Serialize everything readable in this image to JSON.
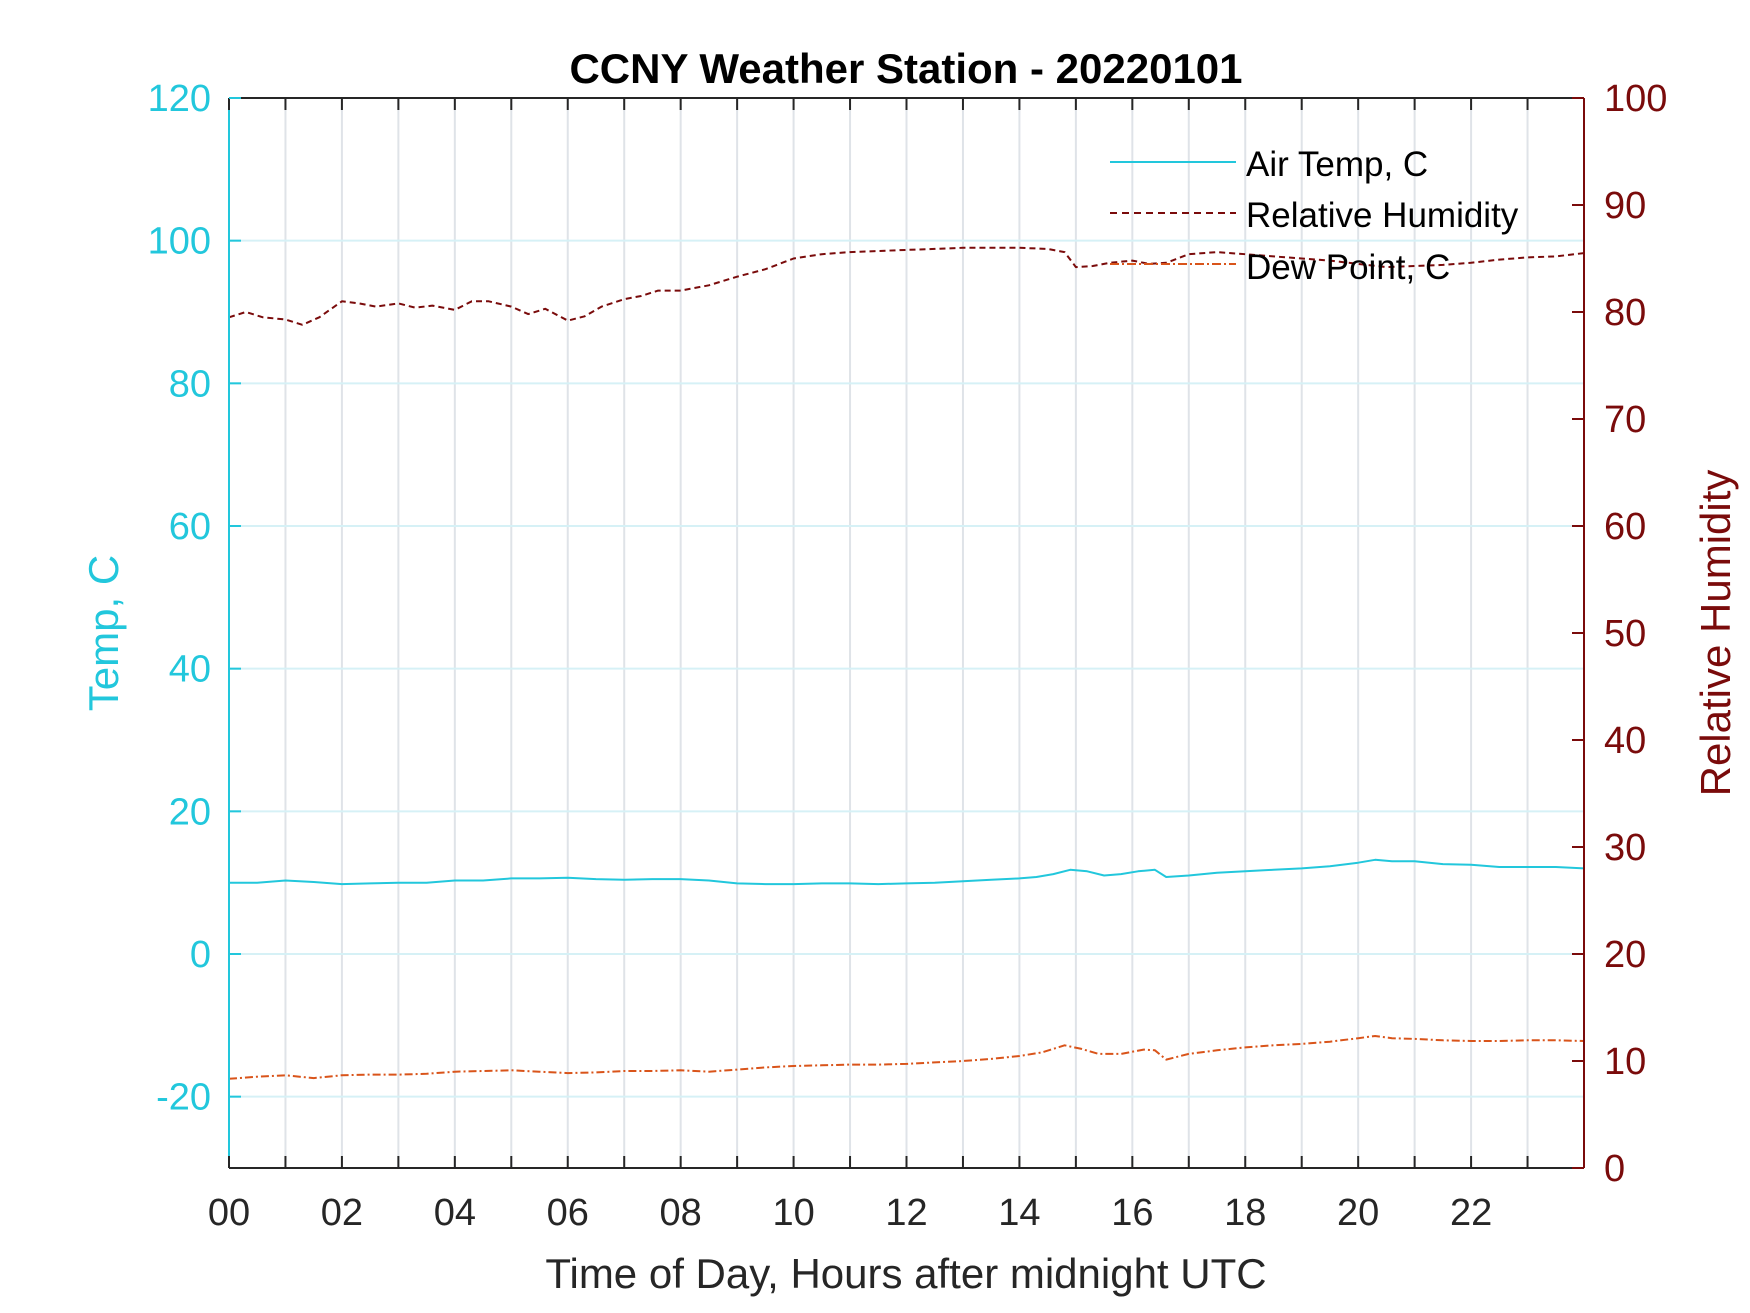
{
  "chart_data": {
    "type": "line",
    "title": "CCNY Weather Station - 20220101",
    "xlabel": "Time of Day, Hours after midnight UTC",
    "ylabel_left": "Temp, C",
    "ylabel_right": "Relative Humidity",
    "xlim": [
      0,
      24
    ],
    "ylim_left": [
      -30,
      120
    ],
    "ylim_right": [
      0,
      100
    ],
    "x_ticks": [
      "00",
      "02",
      "04",
      "06",
      "08",
      "10",
      "12",
      "14",
      "16",
      "18",
      "20",
      "22"
    ],
    "y_ticks_left": [
      -20,
      0,
      20,
      40,
      60,
      80,
      100,
      120
    ],
    "y_ticks_right": [
      0,
      10,
      20,
      30,
      40,
      50,
      60,
      70,
      80,
      90,
      100
    ],
    "grid": true,
    "legend_position": "top-right",
    "colors": {
      "air_temp": "#22c7dc",
      "humidity": "#7a0b0b",
      "dew_point": "#d9541a",
      "grid": "#dfe3e8"
    },
    "series": [
      {
        "name": "Air Temp, C",
        "axis": "left",
        "style": "solid",
        "x": [
          0,
          0.5,
          1,
          1.5,
          2,
          2.5,
          3,
          3.5,
          4,
          4.5,
          5,
          5.5,
          6,
          6.5,
          7,
          7.5,
          8,
          8.5,
          9,
          9.5,
          10,
          10.5,
          11,
          11.5,
          12,
          12.5,
          13,
          13.5,
          14,
          14.3,
          14.6,
          14.9,
          15.2,
          15.5,
          15.8,
          16.1,
          16.4,
          16.6,
          17,
          17.5,
          18,
          18.5,
          19,
          19.5,
          20,
          20.3,
          20.6,
          21,
          21.5,
          22,
          22.5,
          23,
          23.5,
          24
        ],
        "y": [
          10,
          10,
          10.3,
          10.1,
          9.8,
          9.9,
          10,
          10,
          10.3,
          10.3,
          10.6,
          10.6,
          10.7,
          10.5,
          10.4,
          10.5,
          10.5,
          10.3,
          9.9,
          9.8,
          9.8,
          9.9,
          9.9,
          9.8,
          9.9,
          10,
          10.2,
          10.4,
          10.6,
          10.8,
          11.2,
          11.8,
          11.6,
          11,
          11.2,
          11.6,
          11.8,
          10.8,
          11,
          11.4,
          11.6,
          11.8,
          12,
          12.3,
          12.8,
          13.2,
          13,
          13,
          12.6,
          12.5,
          12.2,
          12.2,
          12.2,
          12
        ]
      },
      {
        "name": "Relative Humidity",
        "axis": "right",
        "style": "dashed",
        "x": [
          0,
          0.3,
          0.6,
          1,
          1.3,
          1.6,
          2,
          2.3,
          2.6,
          3,
          3.3,
          3.6,
          4,
          4.3,
          4.6,
          5,
          5.3,
          5.6,
          6,
          6.3,
          6.6,
          7,
          7.3,
          7.6,
          8,
          8.5,
          9,
          9.5,
          10,
          10.5,
          11,
          11.5,
          12,
          12.5,
          13,
          13.5,
          14,
          14.5,
          14.8,
          15,
          15.3,
          15.6,
          16,
          16.3,
          16.6,
          17,
          17.5,
          18,
          18.5,
          19,
          19.5,
          20,
          20.5,
          21,
          21.5,
          22,
          22.5,
          23,
          23.5,
          24
        ],
        "y": [
          79.5,
          80,
          79.5,
          79.3,
          78.8,
          79.5,
          81,
          80.8,
          80.5,
          80.8,
          80.4,
          80.6,
          80.2,
          81,
          81,
          80.5,
          79.8,
          80.3,
          79.2,
          79.6,
          80.5,
          81.2,
          81.5,
          82,
          82,
          82.5,
          83.3,
          84,
          85,
          85.4,
          85.6,
          85.7,
          85.8,
          85.9,
          86,
          86,
          86,
          85.9,
          85.6,
          84.2,
          84.3,
          84.6,
          84.8,
          84.5,
          84.6,
          85.4,
          85.6,
          85.4,
          85.2,
          85,
          84.8,
          84.5,
          84.2,
          84.3,
          84.4,
          84.6,
          84.9,
          85.1,
          85.2,
          85.5
        ]
      },
      {
        "name": "Dew Point, C",
        "axis": "left",
        "style": "dash-dot",
        "x": [
          0,
          0.5,
          1,
          1.5,
          2,
          2.5,
          3,
          3.5,
          4,
          4.5,
          5,
          5.5,
          6,
          6.5,
          7,
          7.5,
          8,
          8.5,
          9,
          9.5,
          10,
          10.5,
          11,
          11.5,
          12,
          12.5,
          13,
          13.5,
          14,
          14.4,
          14.8,
          15.1,
          15.4,
          15.8,
          16.2,
          16.4,
          16.6,
          17,
          17.5,
          18,
          18.5,
          19,
          19.5,
          20,
          20.3,
          20.6,
          21,
          21.5,
          22,
          22.5,
          23,
          23.5,
          24
        ],
        "y": [
          -17.5,
          -17.2,
          -17,
          -17.4,
          -17,
          -16.9,
          -16.9,
          -16.8,
          -16.5,
          -16.4,
          -16.3,
          -16.5,
          -16.7,
          -16.6,
          -16.4,
          -16.4,
          -16.3,
          -16.5,
          -16.2,
          -15.9,
          -15.7,
          -15.6,
          -15.5,
          -15.5,
          -15.4,
          -15.2,
          -15,
          -14.7,
          -14.3,
          -13.8,
          -12.8,
          -13.3,
          -14,
          -14,
          -13.4,
          -13.5,
          -14.8,
          -14,
          -13.5,
          -13.1,
          -12.8,
          -12.6,
          -12.3,
          -11.8,
          -11.5,
          -11.8,
          -11.9,
          -12.1,
          -12.2,
          -12.2,
          -12.1,
          -12.1,
          -12.2
        ]
      }
    ]
  }
}
